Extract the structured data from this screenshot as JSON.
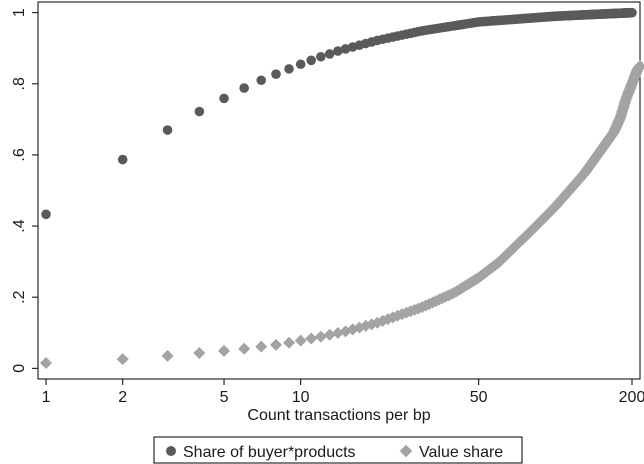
{
  "chart_data": {
    "type": "scatter",
    "title": "",
    "xlabel": "Count transactions per bp",
    "ylabel": "",
    "x_scale": "log",
    "xlim": [
      0.93,
      215
    ],
    "ylim": [
      -0.03,
      1.03
    ],
    "x_ticks": [
      1,
      2,
      5,
      10,
      50,
      200
    ],
    "x_tick_labels": [
      "1",
      "2",
      "5",
      "10",
      "50",
      "200"
    ],
    "y_ticks": [
      0,
      0.2,
      0.4,
      0.6,
      0.8,
      1
    ],
    "y_tick_labels": [
      "0",
      ".2",
      ".4",
      ".6",
      ".8",
      "1"
    ],
    "grid": false,
    "legend_position": "bottom",
    "series": [
      {
        "name": "Share of buyer*products",
        "marker": "circle",
        "color": "#5a5a5a",
        "knots": [
          [
            1,
            0.433
          ],
          [
            2,
            0.587
          ],
          [
            3,
            0.67
          ],
          [
            4,
            0.722
          ],
          [
            5,
            0.759
          ],
          [
            6,
            0.788
          ],
          [
            7,
            0.81
          ],
          [
            8,
            0.827
          ],
          [
            9,
            0.842
          ],
          [
            10,
            0.855
          ],
          [
            11,
            0.866
          ],
          [
            12,
            0.876
          ],
          [
            13,
            0.884
          ],
          [
            14,
            0.892
          ],
          [
            15,
            0.898
          ],
          [
            20,
            0.922
          ],
          [
            30,
            0.949
          ],
          [
            50,
            0.974
          ],
          [
            100,
            0.99
          ],
          [
            150,
            0.996
          ],
          [
            200,
            1.0
          ]
        ]
      },
      {
        "name": "Value share",
        "marker": "diamond",
        "color": "#a3a3a3",
        "knots": [
          [
            1,
            0.015
          ],
          [
            2,
            0.026
          ],
          [
            3,
            0.035
          ],
          [
            4,
            0.043
          ],
          [
            5,
            0.049
          ],
          [
            6,
            0.055
          ],
          [
            7,
            0.061
          ],
          [
            8,
            0.066
          ],
          [
            9,
            0.072
          ],
          [
            10,
            0.078
          ],
          [
            12,
            0.089
          ],
          [
            15,
            0.104
          ],
          [
            20,
            0.128
          ],
          [
            30,
            0.172
          ],
          [
            40,
            0.212
          ],
          [
            50,
            0.255
          ],
          [
            60,
            0.298
          ],
          [
            70,
            0.345
          ],
          [
            80,
            0.385
          ],
          [
            100,
            0.455
          ],
          [
            130,
            0.548
          ],
          [
            150,
            0.61
          ],
          [
            170,
            0.665
          ],
          [
            180,
            0.705
          ],
          [
            190,
            0.76
          ],
          [
            200,
            0.8
          ],
          [
            210,
            0.84
          ],
          [
            215,
            0.85
          ]
        ]
      }
    ]
  },
  "legend": {
    "items": [
      {
        "label": "Share of buyer*products",
        "marker": "circle",
        "color": "#5a5a5a"
      },
      {
        "label": "Value share",
        "marker": "diamond",
        "color": "#a3a3a3"
      }
    ]
  }
}
